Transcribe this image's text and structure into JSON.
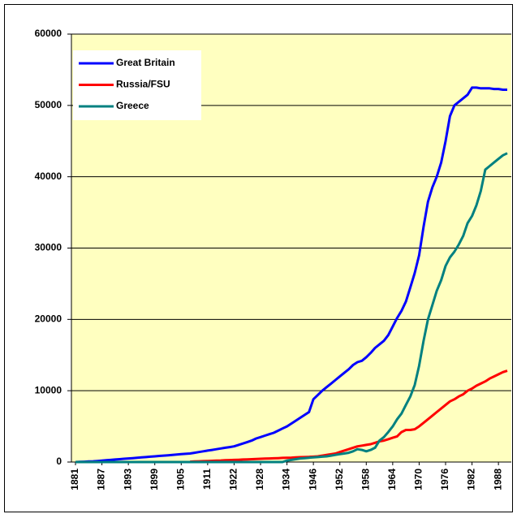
{
  "chart_data": {
    "type": "line",
    "categories": [
      "1881",
      null,
      null,
      null,
      null,
      null,
      "1887",
      null,
      null,
      null,
      null,
      null,
      "1893",
      null,
      null,
      null,
      null,
      null,
      "1899",
      null,
      null,
      null,
      null,
      null,
      "1905",
      null,
      null,
      null,
      null,
      null,
      "1911",
      null,
      null,
      null,
      null,
      null,
      "1922",
      null,
      null,
      null,
      null,
      null,
      "1928",
      null,
      null,
      null,
      null,
      null,
      "1934",
      null,
      null,
      null,
      null,
      null,
      "1946",
      null,
      null,
      null,
      null,
      null,
      "1952",
      null,
      null,
      null,
      null,
      null,
      "1958",
      null,
      null,
      null,
      null,
      null,
      "1964",
      null,
      null,
      null,
      null,
      null,
      "1970",
      null,
      null,
      null,
      null,
      null,
      "1976",
      null,
      null,
      null,
      null,
      null,
      "1982",
      null,
      null,
      null,
      null,
      null,
      "1988",
      null,
      null
    ],
    "series": [
      {
        "name": "Great Britain",
        "color": "#0000ff",
        "values": [
          0,
          20,
          50,
          80,
          100,
          150,
          200,
          250,
          300,
          350,
          400,
          450,
          500,
          550,
          600,
          650,
          700,
          750,
          800,
          850,
          900,
          950,
          1000,
          1050,
          1100,
          1150,
          1200,
          1300,
          1400,
          1500,
          1600,
          1700,
          1800,
          1900,
          2000,
          2100,
          2200,
          2400,
          2600,
          2800,
          3000,
          3300,
          3500,
          3700,
          3900,
          4100,
          4400,
          4700,
          5000,
          5400,
          5800,
          6200,
          6600,
          7000,
          8800,
          9400,
          10000,
          10500,
          11000,
          11500,
          12000,
          12500,
          13000,
          13600,
          14000,
          14200,
          14700,
          15300,
          16000,
          16500,
          17000,
          17800,
          19000,
          20200,
          21200,
          22500,
          24500,
          26500,
          29000,
          33000,
          36500,
          38500,
          40000,
          42000,
          45000,
          48500,
          50000,
          50500,
          51000,
          51500,
          52500,
          52500,
          52400,
          52400,
          52400,
          52300,
          52300,
          52200,
          52200
        ]
      },
      {
        "name": "Russia/FSU",
        "color": "#ff0000",
        "values": [
          null,
          null,
          null,
          null,
          null,
          null,
          null,
          null,
          null,
          null,
          null,
          null,
          null,
          null,
          null,
          null,
          null,
          null,
          null,
          null,
          null,
          null,
          null,
          null,
          null,
          null,
          50,
          80,
          100,
          120,
          150,
          170,
          200,
          220,
          250,
          270,
          300,
          320,
          350,
          380,
          400,
          420,
          450,
          480,
          500,
          520,
          550,
          580,
          600,
          620,
          650,
          680,
          700,
          720,
          750,
          800,
          900,
          1000,
          1100,
          1200,
          1400,
          1600,
          1800,
          2000,
          2200,
          2300,
          2400,
          2500,
          2700,
          2900,
          3000,
          3200,
          3400,
          3600,
          4200,
          4500,
          4500,
          4600,
          5000,
          5500,
          6000,
          6500,
          7000,
          7500,
          8000,
          8500,
          8800,
          9200,
          9500,
          10000,
          10300,
          10700,
          11000,
          11300,
          11700,
          12000,
          12300,
          12600,
          12800
        ]
      },
      {
        "name": "Greece",
        "color": "#008080",
        "values": [
          0,
          0,
          0,
          0,
          0,
          0,
          0,
          0,
          0,
          0,
          0,
          0,
          0,
          0,
          0,
          0,
          0,
          0,
          0,
          0,
          0,
          0,
          0,
          0,
          0,
          0,
          0,
          0,
          0,
          0,
          0,
          0,
          0,
          0,
          0,
          0,
          0,
          0,
          0,
          0,
          0,
          0,
          0,
          0,
          0,
          0,
          0,
          0,
          200,
          300,
          400,
          500,
          550,
          600,
          650,
          700,
          750,
          800,
          900,
          1000,
          1100,
          1200,
          1300,
          1500,
          1800,
          1700,
          1500,
          1700,
          2000,
          3000,
          3500,
          4200,
          5000,
          6000,
          6800,
          8000,
          9200,
          10800,
          13500,
          17000,
          20000,
          22000,
          24000,
          25500,
          27500,
          28700,
          29500,
          30500,
          31700,
          33500,
          34500,
          36000,
          38000,
          41000,
          41500,
          42000,
          42500,
          43000,
          43300
        ]
      }
    ],
    "ylim": [
      0,
      60000
    ],
    "yticks": [
      0,
      10000,
      20000,
      30000,
      40000,
      50000,
      60000
    ],
    "grid": true,
    "legend": "top-left"
  }
}
